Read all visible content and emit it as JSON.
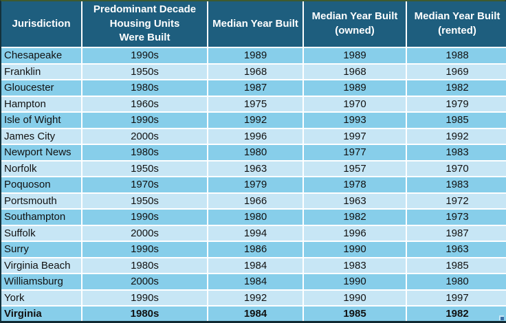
{
  "chart_data": {
    "type": "table",
    "columns": [
      "Jurisdiction",
      "Predominant Decade\nHousing Units\nWere Built",
      "Median Year Built",
      "Median Year Built\n(owned)",
      "Median Year Built\n(rented)"
    ],
    "rows": [
      [
        "Chesapeake",
        "1990s",
        "1989",
        "1989",
        "1988"
      ],
      [
        "Franklin",
        "1950s",
        "1968",
        "1968",
        "1969"
      ],
      [
        "Gloucester",
        "1980s",
        "1987",
        "1989",
        "1982"
      ],
      [
        "Hampton",
        "1960s",
        "1975",
        "1970",
        "1979"
      ],
      [
        "Isle of Wight",
        "1990s",
        "1992",
        "1993",
        "1985"
      ],
      [
        "James City",
        "2000s",
        "1996",
        "1997",
        "1992"
      ],
      [
        "Newport News",
        "1980s",
        "1980",
        "1977",
        "1983"
      ],
      [
        "Norfolk",
        "1950s",
        "1963",
        "1957",
        "1970"
      ],
      [
        "Poquoson",
        "1970s",
        "1979",
        "1978",
        "1983"
      ],
      [
        "Portsmouth",
        "1950s",
        "1966",
        "1963",
        "1972"
      ],
      [
        "Southampton",
        "1990s",
        "1980",
        "1982",
        "1973"
      ],
      [
        "Suffolk",
        "2000s",
        "1994",
        "1996",
        "1987"
      ],
      [
        "Surry",
        "1990s",
        "1986",
        "1990",
        "1963"
      ],
      [
        "Virginia Beach",
        "1980s",
        "1984",
        "1983",
        "1985"
      ],
      [
        "Williamsburg",
        "2000s",
        "1984",
        "1990",
        "1980"
      ],
      [
        "York",
        "1990s",
        "1992",
        "1990",
        "1997"
      ],
      [
        "Virginia",
        "1980s",
        "1984",
        "1985",
        "1982"
      ]
    ],
    "summary_row_index": 16
  },
  "colors": {
    "header_bg": "#1E5E7E",
    "header_text": "#FFFFFF",
    "row_stripe_dark": "#87CEEA",
    "row_stripe_light": "#C7E6F5",
    "body_text": "#111111",
    "grid_line": "#FFFFFF",
    "selection_handle": "#3A6EA5"
  }
}
